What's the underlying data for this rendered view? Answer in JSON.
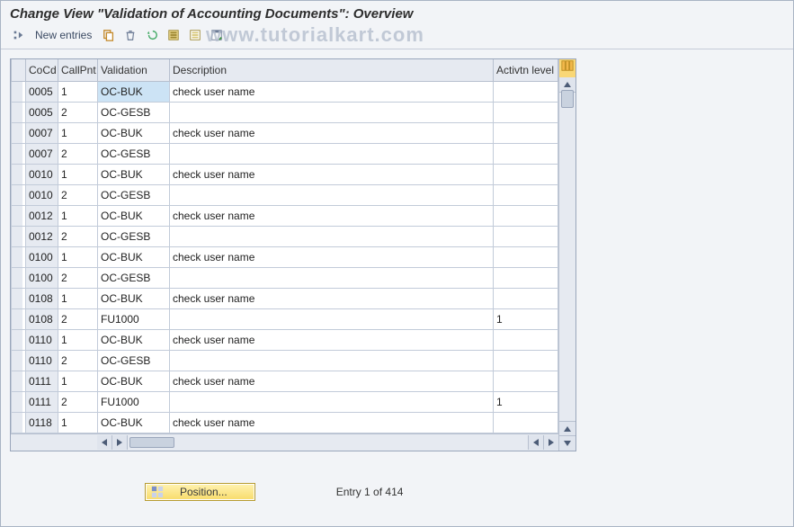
{
  "title": "Change View \"Validation of Accounting Documents\": Overview",
  "watermark": "www.tutorialkart.com",
  "toolbar": {
    "new_entries": "New entries"
  },
  "columns": {
    "cocd": "CoCd",
    "callpnt": "CallPnt",
    "validation": "Validation",
    "description": "Description",
    "activtn": "Activtn level"
  },
  "rows": [
    {
      "cocd": "0005",
      "callpnt": "1",
      "validation": "OC-BUK",
      "description": "check user name",
      "activtn": "",
      "sel": true
    },
    {
      "cocd": "0005",
      "callpnt": "2",
      "validation": "OC-GESB",
      "description": "",
      "activtn": ""
    },
    {
      "cocd": "0007",
      "callpnt": "1",
      "validation": "OC-BUK",
      "description": "check user name",
      "activtn": ""
    },
    {
      "cocd": "0007",
      "callpnt": "2",
      "validation": "OC-GESB",
      "description": "",
      "activtn": ""
    },
    {
      "cocd": "0010",
      "callpnt": "1",
      "validation": "OC-BUK",
      "description": "check user name",
      "activtn": ""
    },
    {
      "cocd": "0010",
      "callpnt": "2",
      "validation": "OC-GESB",
      "description": "",
      "activtn": ""
    },
    {
      "cocd": "0012",
      "callpnt": "1",
      "validation": "OC-BUK",
      "description": "check user name",
      "activtn": ""
    },
    {
      "cocd": "0012",
      "callpnt": "2",
      "validation": "OC-GESB",
      "description": "",
      "activtn": ""
    },
    {
      "cocd": "0100",
      "callpnt": "1",
      "validation": "OC-BUK",
      "description": "check user name",
      "activtn": ""
    },
    {
      "cocd": "0100",
      "callpnt": "2",
      "validation": "OC-GESB",
      "description": "",
      "activtn": ""
    },
    {
      "cocd": "0108",
      "callpnt": "1",
      "validation": "OC-BUK",
      "description": "check user name",
      "activtn": ""
    },
    {
      "cocd": "0108",
      "callpnt": "2",
      "validation": "FU1000",
      "description": "",
      "activtn": "1"
    },
    {
      "cocd": "0110",
      "callpnt": "1",
      "validation": "OC-BUK",
      "description": "check user name",
      "activtn": ""
    },
    {
      "cocd": "0110",
      "callpnt": "2",
      "validation": "OC-GESB",
      "description": "",
      "activtn": ""
    },
    {
      "cocd": "0111",
      "callpnt": "1",
      "validation": "OC-BUK",
      "description": "check user name",
      "activtn": ""
    },
    {
      "cocd": "0111",
      "callpnt": "2",
      "validation": "FU1000",
      "description": "",
      "activtn": "1"
    },
    {
      "cocd": "0118",
      "callpnt": "1",
      "validation": "OC-BUK",
      "description": "check user name",
      "activtn": ""
    }
  ],
  "footer": {
    "position_btn": "Position...",
    "entry_text": "Entry 1 of 414"
  },
  "colors": {
    "header_bg": "#e6eaf1",
    "border": "#b7c0cf",
    "highlight": "#cce3f5",
    "button_bg": "#f8dc6b"
  }
}
